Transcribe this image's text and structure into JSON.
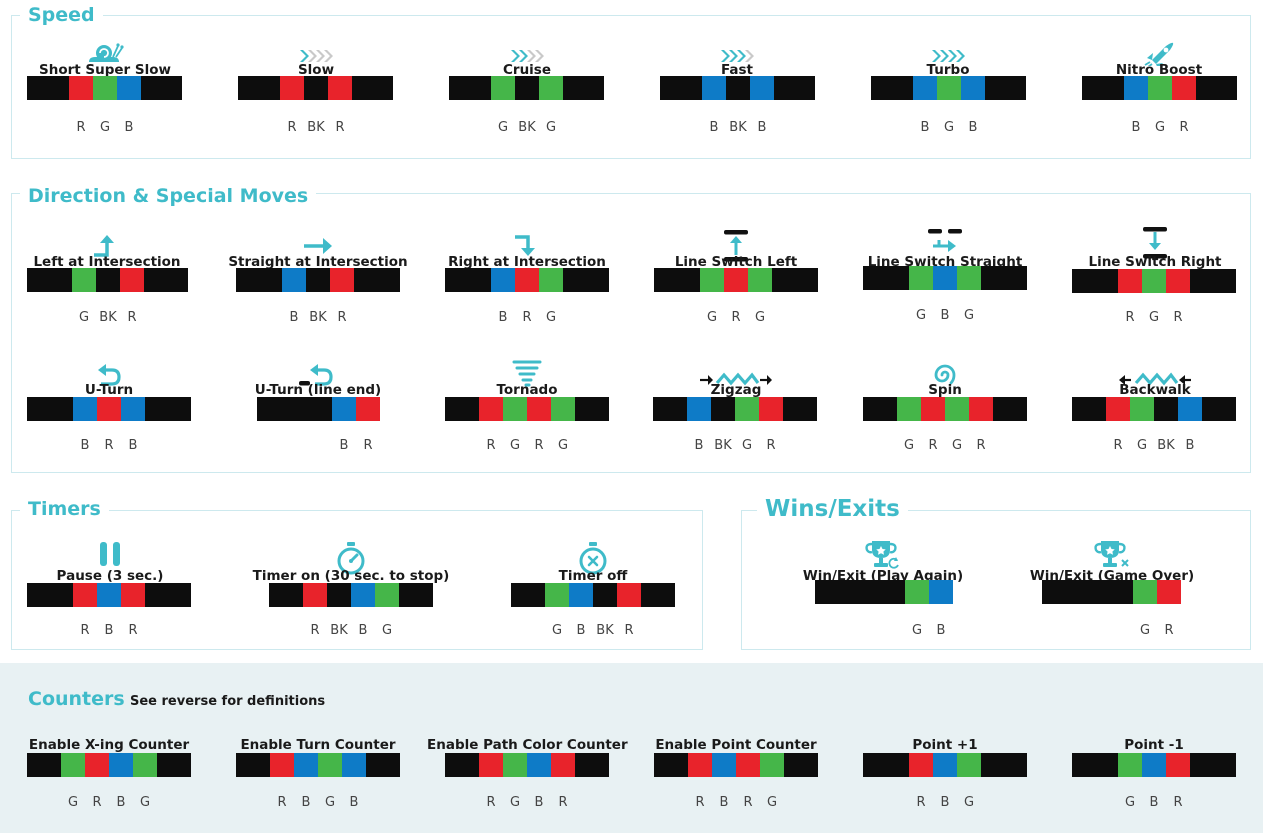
{
  "colors": {
    "R": "#e8232b",
    "G": "#45b649",
    "B": "#0e7bc7",
    "BK": "#0d0d0d",
    "accent": "#3fbbc9",
    "border": "#cde9ee",
    "band": "#e8f1f3"
  },
  "sections": {
    "speed": {
      "title": "Speed"
    },
    "direction": {
      "title": "Direction & Special Moves"
    },
    "timers": {
      "title": "Timers"
    },
    "wins": {
      "title": "Wins/Exits"
    },
    "counters": {
      "title": "Counters",
      "subtitle": "See reverse for definitions"
    }
  },
  "items": [
    {
      "id": "short-super-slow",
      "section": "speed",
      "label": "Short Super Slow",
      "icon": "snail-icon",
      "codes": [
        "R",
        "G",
        "B"
      ]
    },
    {
      "id": "slow",
      "section": "speed",
      "label": "Slow",
      "icon": "chevrons-1-icon",
      "codes": [
        "R",
        "BK",
        "R"
      ]
    },
    {
      "id": "cruise",
      "section": "speed",
      "label": "Cruise",
      "icon": "chevrons-2-icon",
      "codes": [
        "G",
        "BK",
        "G"
      ]
    },
    {
      "id": "fast",
      "section": "speed",
      "label": "Fast",
      "icon": "chevrons-3-icon",
      "codes": [
        "B",
        "BK",
        "B"
      ]
    },
    {
      "id": "turbo",
      "section": "speed",
      "label": "Turbo",
      "icon": "chevrons-4-icon",
      "codes": [
        "B",
        "G",
        "B"
      ]
    },
    {
      "id": "nitro-boost",
      "section": "speed",
      "label": "Nitro Boost",
      "icon": "rocket-icon",
      "codes": [
        "B",
        "G",
        "R"
      ]
    },
    {
      "id": "left-at-intersection",
      "section": "direction",
      "label": "Left at Intersection",
      "icon": "turn-left-icon",
      "codes": [
        "G",
        "BK",
        "R"
      ]
    },
    {
      "id": "straight-at-intersection",
      "section": "direction",
      "label": "Straight at Intersection",
      "icon": "arrow-right-icon",
      "codes": [
        "B",
        "BK",
        "R"
      ]
    },
    {
      "id": "right-at-intersection",
      "section": "direction",
      "label": "Right at Intersection",
      "icon": "turn-right-icon",
      "codes": [
        "B",
        "R",
        "G"
      ]
    },
    {
      "id": "line-switch-left",
      "section": "direction",
      "label": "Line Switch Left",
      "icon": "line-switch-left-icon",
      "codes": [
        "G",
        "R",
        "G"
      ]
    },
    {
      "id": "line-switch-straight",
      "section": "direction",
      "label": "Line Switch Straight",
      "icon": "line-switch-straight-icon",
      "codes": [
        "G",
        "B",
        "G"
      ]
    },
    {
      "id": "line-switch-right",
      "section": "direction",
      "label": "Line Switch Right",
      "icon": "line-switch-right-icon",
      "codes": [
        "R",
        "G",
        "R"
      ]
    },
    {
      "id": "u-turn",
      "section": "direction",
      "label": "U-Turn",
      "icon": "u-turn-icon",
      "codes": [
        "B",
        "R",
        "B"
      ]
    },
    {
      "id": "u-turn-line-end",
      "section": "direction",
      "label": "U-Turn (line end)",
      "icon": "u-turn-line-end-icon",
      "codes": [
        "B",
        "R"
      ]
    },
    {
      "id": "tornado",
      "section": "direction",
      "label": "Tornado",
      "icon": "tornado-icon",
      "codes": [
        "R",
        "G",
        "R",
        "G"
      ]
    },
    {
      "id": "zigzag",
      "section": "direction",
      "label": "Zigzag",
      "icon": "zigzag-icon",
      "codes": [
        "B",
        "BK",
        "G",
        "R"
      ]
    },
    {
      "id": "spin",
      "section": "direction",
      "label": "Spin",
      "icon": "spin-icon",
      "codes": [
        "G",
        "R",
        "G",
        "R"
      ]
    },
    {
      "id": "backwalk",
      "section": "direction",
      "label": "Backwalk",
      "icon": "backwalk-icon",
      "codes": [
        "R",
        "G",
        "BK",
        "B"
      ]
    },
    {
      "id": "pause",
      "section": "timers",
      "label": "Pause (3 sec.)",
      "icon": "pause-icon",
      "codes": [
        "R",
        "B",
        "R"
      ]
    },
    {
      "id": "timer-on",
      "section": "timers",
      "label": "Timer on (30 sec. to stop)",
      "icon": "stopwatch-icon",
      "codes": [
        "R",
        "BK",
        "B",
        "G"
      ]
    },
    {
      "id": "timer-off",
      "section": "timers",
      "label": "Timer off",
      "icon": "stopwatch-off-icon",
      "codes": [
        "G",
        "B",
        "BK",
        "R"
      ]
    },
    {
      "id": "win-play-again",
      "section": "wins",
      "label": "Win/Exit (Play Again)",
      "icon": "trophy-replay-icon",
      "codes": [
        "G",
        "B"
      ]
    },
    {
      "id": "win-game-over",
      "section": "wins",
      "label": "Win/Exit (Game Over)",
      "icon": "trophy-x-icon",
      "codes": [
        "G",
        "R"
      ]
    },
    {
      "id": "enable-x-ing-counter",
      "section": "counters",
      "label": "Enable X-ing  Counter",
      "icon": "",
      "codes": [
        "G",
        "R",
        "B",
        "G"
      ]
    },
    {
      "id": "enable-turn-counter",
      "section": "counters",
      "label": "Enable Turn Counter",
      "icon": "",
      "codes": [
        "R",
        "B",
        "G",
        "B"
      ]
    },
    {
      "id": "enable-path-color-counter",
      "section": "counters",
      "label": "Enable Path Color Counter",
      "icon": "",
      "codes": [
        "R",
        "G",
        "B",
        "R"
      ]
    },
    {
      "id": "enable-point-counter",
      "section": "counters",
      "label": "Enable Point Counter",
      "icon": "",
      "codes": [
        "R",
        "B",
        "R",
        "G"
      ]
    },
    {
      "id": "point-plus-1",
      "section": "counters",
      "label": "Point +1",
      "icon": "",
      "codes": [
        "R",
        "B",
        "G"
      ]
    },
    {
      "id": "point-minus-1",
      "section": "counters",
      "label": "Point -1",
      "icon": "",
      "codes": [
        "G",
        "B",
        "R"
      ]
    }
  ]
}
